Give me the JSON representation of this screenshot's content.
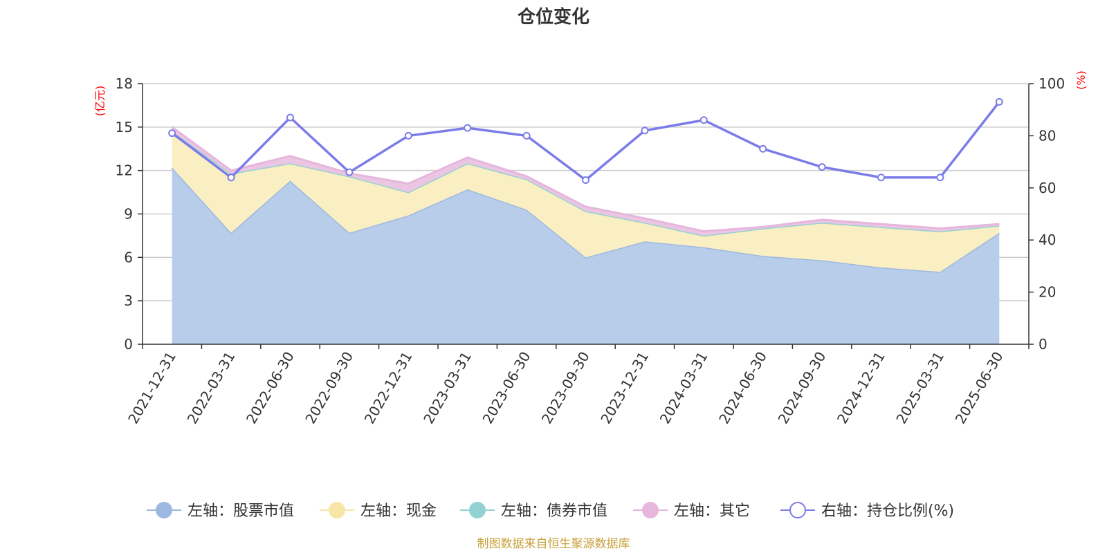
{
  "chart_data": {
    "type": "area",
    "title": "仓位变化",
    "left_unit": "(亿元)",
    "right_unit": "(%)",
    "source": "制图数据来自恒生聚源数据库",
    "left_axis": {
      "min": 0,
      "max": 18,
      "ticks": [
        0,
        3,
        6,
        9,
        12,
        15,
        18
      ]
    },
    "right_axis": {
      "min": 0,
      "max": 100,
      "ticks": [
        0,
        20,
        40,
        60,
        80,
        100
      ]
    },
    "categories": [
      "2021-12-31",
      "2022-03-31",
      "2022-06-30",
      "2022-09-30",
      "2022-12-31",
      "2023-03-31",
      "2023-06-30",
      "2023-09-30",
      "2023-12-31",
      "2024-03-31",
      "2024-06-30",
      "2024-09-30",
      "2024-12-31",
      "2025-03-31",
      "2025-06-30"
    ],
    "series": [
      {
        "name": "左轴：股票市值",
        "axis": "left",
        "kind": "stacked-area",
        "color": "#9db8e0",
        "fill": "#b8cdea",
        "values": [
          12.2,
          7.7,
          11.3,
          7.7,
          8.9,
          10.7,
          9.3,
          6.0,
          7.1,
          6.7,
          6.1,
          5.8,
          5.3,
          5.0,
          7.7
        ]
      },
      {
        "name": "左轴：现金",
        "axis": "left",
        "kind": "stacked-area",
        "color": "#f7e6a5",
        "fill": "#faeec3",
        "values": [
          2.5,
          4.1,
          1.2,
          3.9,
          1.6,
          1.8,
          2.1,
          3.2,
          1.3,
          0.8,
          1.9,
          2.6,
          2.8,
          2.8,
          0.5
        ]
      },
      {
        "name": "左轴：债券市值",
        "axis": "left",
        "kind": "stacked-area",
        "color": "#92d2d2",
        "fill": "#bfe6e6",
        "values": [
          0,
          0,
          0,
          0,
          0,
          0,
          0,
          0,
          0,
          0,
          0,
          0,
          0,
          0,
          0
        ]
      },
      {
        "name": "左轴：其它",
        "axis": "left",
        "kind": "stacked-area",
        "color": "#e6b6dc",
        "fill": "#ebc6e3",
        "values": [
          0.3,
          0.2,
          0.5,
          0.2,
          0.6,
          0.4,
          0.2,
          0.3,
          0.3,
          0.3,
          0.1,
          0.2,
          0.2,
          0.2,
          0.1
        ]
      },
      {
        "name": "右轴：持仓比例(%)",
        "axis": "right",
        "kind": "line",
        "color": "#7b7bea",
        "values": [
          81,
          64,
          87,
          66,
          80,
          83,
          80,
          63,
          82,
          86,
          75,
          68,
          64,
          64,
          93
        ]
      }
    ],
    "grid": true,
    "legend_position": "bottom"
  }
}
